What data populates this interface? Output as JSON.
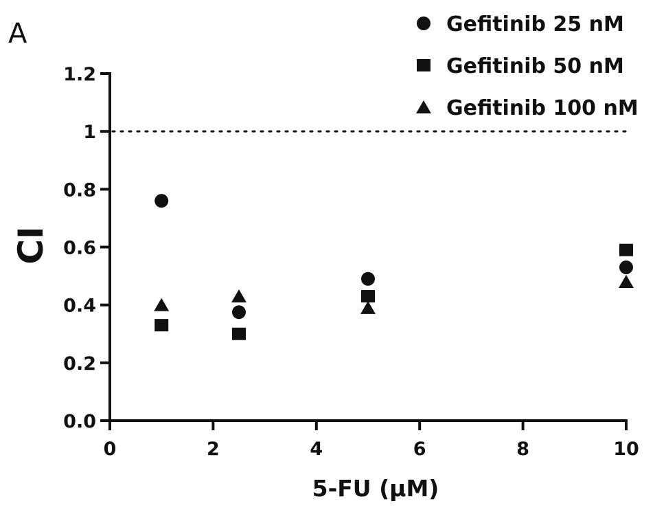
{
  "panel_label": "A",
  "colors": {
    "ink": "#111111",
    "background": "#ffffff"
  },
  "chart_data": {
    "type": "scatter",
    "title": "",
    "xlabel": "5-FU (μM)",
    "ylabel": "CI",
    "xlim": [
      0,
      10
    ],
    "ylim": [
      0,
      1.2
    ],
    "x_ticks": [
      "0",
      "2",
      "4",
      "6",
      "8",
      "10"
    ],
    "y_ticks": [
      "0.0",
      "0.2",
      "0.4",
      "0.6",
      "0.8",
      "1",
      "1.2"
    ],
    "grid": false,
    "legend_position": "top-right",
    "reference_line": {
      "y": 1,
      "style": "dotted"
    },
    "series": [
      {
        "name": "Gefitinib 25 nM",
        "marker": "circle",
        "x": [
          1,
          2.5,
          5,
          10
        ],
        "y": [
          0.76,
          0.375,
          0.49,
          0.53
        ]
      },
      {
        "name": "Gefitinib 50 nM",
        "marker": "square",
        "x": [
          1,
          2.5,
          5,
          10
        ],
        "y": [
          0.33,
          0.3,
          0.43,
          0.59
        ]
      },
      {
        "name": "Gefitinib 100 nM",
        "marker": "triangle",
        "x": [
          1,
          2.5,
          5,
          10
        ],
        "y": [
          0.4,
          0.43,
          0.39,
          0.48
        ]
      }
    ]
  }
}
